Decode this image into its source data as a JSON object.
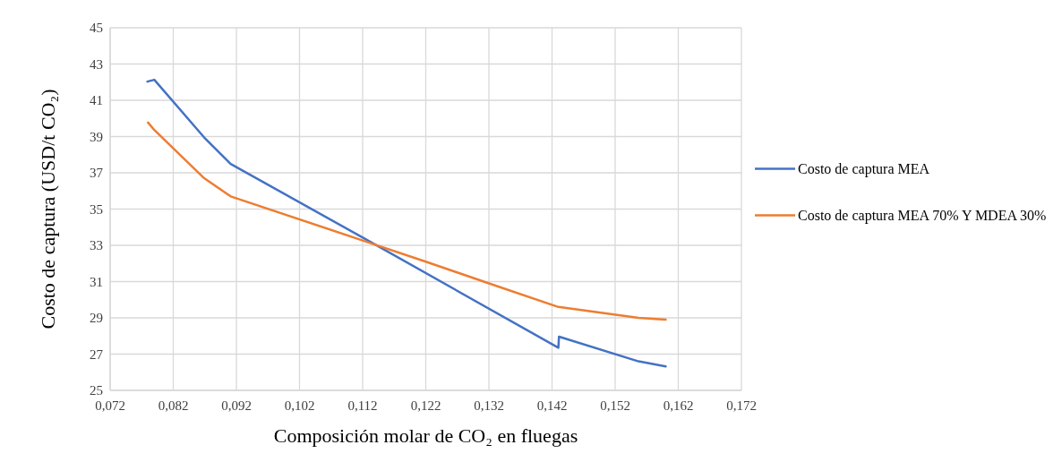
{
  "chart_data": {
    "type": "line",
    "xlabel": "Composición molar de CO₂ en fluegas",
    "ylabel": "Costo de captura (USD/t CO₂)",
    "xlim": [
      0.072,
      0.172
    ],
    "xticks": [
      {
        "value": 0.072,
        "label": "0,072"
      },
      {
        "value": 0.082,
        "label": "0,082"
      },
      {
        "value": 0.092,
        "label": "0,092"
      },
      {
        "value": 0.102,
        "label": "0,102"
      },
      {
        "value": 0.112,
        "label": "0,112"
      },
      {
        "value": 0.122,
        "label": "0,122"
      },
      {
        "value": 0.132,
        "label": "0,132"
      },
      {
        "value": 0.142,
        "label": "0,142"
      },
      {
        "value": 0.152,
        "label": "0,152"
      },
      {
        "value": 0.162,
        "label": "0,162"
      },
      {
        "value": 0.172,
        "label": "0,172"
      }
    ],
    "ylim": [
      25,
      45
    ],
    "yticks": [
      25,
      27,
      29,
      31,
      33,
      35,
      37,
      39,
      41,
      43,
      45
    ],
    "grid": true,
    "legend": "right",
    "marker": "none",
    "line_style": "solid",
    "series": [
      {
        "name": "Costo de captura MEA",
        "color": "#4472c4",
        "x": [
          0.0779,
          0.079,
          0.0869,
          0.0911,
          0.1119,
          0.143,
          0.1431,
          0.1557,
          0.16
        ],
        "values": [
          42.03,
          42.13,
          38.95,
          37.49,
          33.45,
          27.35,
          27.96,
          26.6,
          26.32
        ]
      },
      {
        "name": "Costo de captura MEA 70% Y MDEA 30%",
        "color": "#ed7d31",
        "x": [
          0.078,
          0.079,
          0.0869,
          0.0911,
          0.1119,
          0.122,
          0.132,
          0.143,
          0.1557,
          0.16
        ],
        "values": [
          39.77,
          39.36,
          36.7,
          35.7,
          33.28,
          32.1,
          30.9,
          29.6,
          29.0,
          28.9
        ]
      }
    ]
  }
}
